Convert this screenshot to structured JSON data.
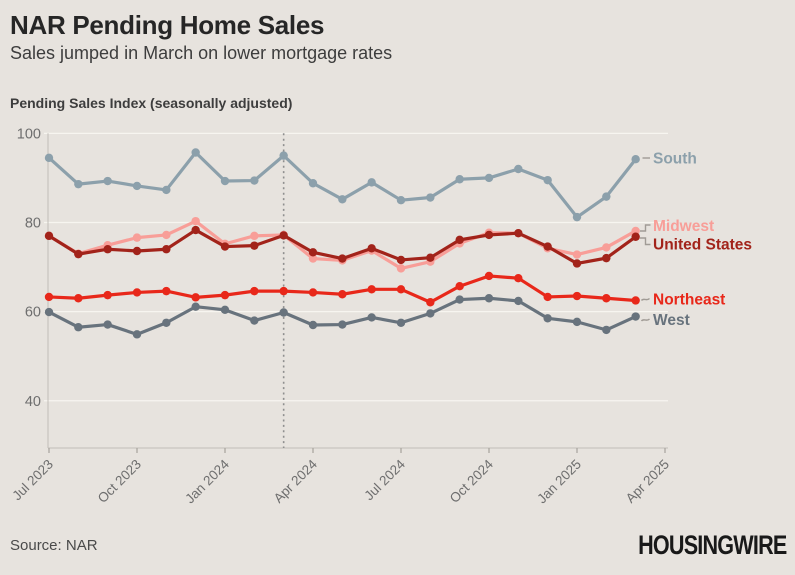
{
  "footer": {
    "source": "Source: NAR",
    "logo": "HOUSINGWIRE"
  },
  "colors": {
    "background": "#e7e3de",
    "grid": "#f7f5f0",
    "axis": "#c2beb8",
    "tick_text": "#6e6e6e",
    "dashed_line": "#8f8f8f",
    "connector": "#a09b95",
    "title": "#262626",
    "subtitle": "#3d3d3d"
  },
  "chart_data": {
    "type": "line",
    "title": "NAR Pending Home Sales",
    "subtitle": "Sales jumped in March on lower mortgage rates",
    "ylabel": "Pending Sales Index (seasonally adjusted)",
    "xlabel": "",
    "ylim": [
      30,
      100
    ],
    "yticks": [
      40,
      60,
      80,
      100
    ],
    "grid": "horizontal",
    "legend_position": "right-edge-labels",
    "vline": {
      "x": "Mar 2024",
      "style": "dotted"
    },
    "x": [
      "Jul 2023",
      "Aug 2023",
      "Sep 2023",
      "Oct 2023",
      "Nov 2023",
      "Dec 2023",
      "Jan 2024",
      "Feb 2024",
      "Mar 2024",
      "Apr 2024",
      "May 2024",
      "Jun 2024",
      "Jul 2024",
      "Aug 2024",
      "Sep 2024",
      "Oct 2024",
      "Nov 2024",
      "Dec 2024",
      "Jan 2025",
      "Feb 2025",
      "Mar 2025"
    ],
    "x_ticks": [
      "Jul 2023",
      "Oct 2023",
      "Jan 2024",
      "Apr 2024",
      "Jul 2024",
      "Oct 2024",
      "Jan 2025",
      "Apr 2025"
    ],
    "series": [
      {
        "name": "South",
        "color": "#8ca0ab",
        "values": [
          94.5,
          88.6,
          89.3,
          88.2,
          87.3,
          95.7,
          89.3,
          89.4,
          95.0,
          88.8,
          85.2,
          89.0,
          85.0,
          85.6,
          89.7,
          90.0,
          92.0,
          89.5,
          81.2,
          85.8,
          94.2
        ]
      },
      {
        "name": "West",
        "color": "#68737d",
        "values": [
          59.9,
          56.5,
          57.1,
          54.9,
          57.5,
          61.1,
          60.4,
          58.0,
          59.8,
          57.0,
          57.1,
          58.7,
          57.5,
          59.6,
          62.7,
          63.0,
          62.4,
          58.5,
          57.7,
          55.9,
          58.9
        ]
      },
      {
        "name": "Midwest",
        "color": "#f89e98",
        "values": [
          77.0,
          73.0,
          74.9,
          76.6,
          77.2,
          80.3,
          75.2,
          77.0,
          77.2,
          71.9,
          71.5,
          73.7,
          69.7,
          71.2,
          75.3,
          77.7,
          77.6,
          74.2,
          72.8,
          74.4,
          78.1
        ]
      },
      {
        "name": "United States",
        "color": "#a2231a",
        "values": [
          77.0,
          72.9,
          74.0,
          73.6,
          74.0,
          78.3,
          74.6,
          74.8,
          77.1,
          73.3,
          71.9,
          74.2,
          71.6,
          72.1,
          76.1,
          77.2,
          77.6,
          74.6,
          70.8,
          72.0,
          76.8
        ]
      },
      {
        "name": "Northeast",
        "color": "#e8281a",
        "values": [
          63.3,
          63.0,
          63.7,
          64.3,
          64.6,
          63.2,
          63.7,
          64.6,
          64.6,
          64.3,
          63.9,
          65.0,
          65.0,
          62.1,
          65.7,
          68.0,
          67.5,
          63.3,
          63.5,
          63.0,
          62.5
        ]
      }
    ]
  }
}
